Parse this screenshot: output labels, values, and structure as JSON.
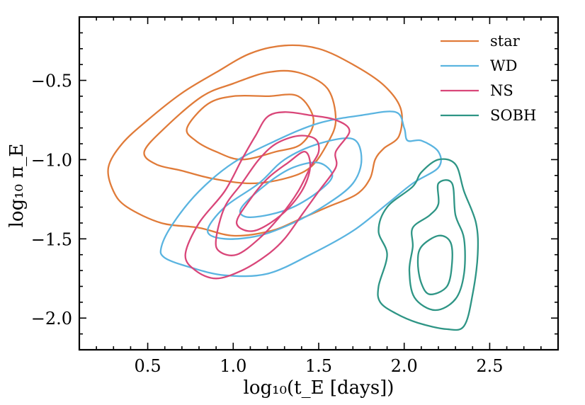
{
  "chart_data": {
    "type": "contour",
    "title": "",
    "xlabel": "log₁₀(t_E [days])",
    "ylabel": "log₁₀ π_E",
    "xlim": [
      0.1,
      2.9
    ],
    "ylim": [
      -2.2,
      -0.1
    ],
    "x_ticks": [
      {
        "v": 0.5,
        "label": "0.5"
      },
      {
        "v": 1.0,
        "label": "1.0"
      },
      {
        "v": 1.5,
        "label": "1.5"
      },
      {
        "v": 2.0,
        "label": "2.0"
      },
      {
        "v": 2.5,
        "label": "2.5"
      }
    ],
    "y_ticks": [
      {
        "v": -0.5,
        "label": "−0.5"
      },
      {
        "v": -1.0,
        "label": "−1.0"
      },
      {
        "v": -1.5,
        "label": "−1.5"
      },
      {
        "v": -2.0,
        "label": "−2.0"
      }
    ],
    "grid": false,
    "legend_position": "top-right",
    "series": [
      {
        "name": "star",
        "color": "#e07b39",
        "contours": [
          [
            [
              0.27,
              -1.05
            ],
            [
              0.35,
              -0.9
            ],
            [
              0.5,
              -0.75
            ],
            [
              0.7,
              -0.58
            ],
            [
              0.9,
              -0.45
            ],
            [
              1.1,
              -0.33
            ],
            [
              1.3,
              -0.28
            ],
            [
              1.5,
              -0.3
            ],
            [
              1.7,
              -0.4
            ],
            [
              1.88,
              -0.53
            ],
            [
              1.98,
              -0.68
            ],
            [
              1.97,
              -0.85
            ],
            [
              1.88,
              -0.93
            ],
            [
              1.83,
              -1.0
            ],
            [
              1.8,
              -1.12
            ],
            [
              1.72,
              -1.22
            ],
            [
              1.55,
              -1.3
            ],
            [
              1.38,
              -1.38
            ],
            [
              1.22,
              -1.45
            ],
            [
              1.0,
              -1.48
            ],
            [
              0.8,
              -1.43
            ],
            [
              0.58,
              -1.4
            ],
            [
              0.38,
              -1.3
            ],
            [
              0.3,
              -1.2
            ],
            [
              0.27,
              -1.05
            ]
          ],
          [
            [
              0.48,
              -0.95
            ],
            [
              0.6,
              -0.8
            ],
            [
              0.82,
              -0.6
            ],
            [
              1.0,
              -0.52
            ],
            [
              1.2,
              -0.45
            ],
            [
              1.38,
              -0.45
            ],
            [
              1.55,
              -0.55
            ],
            [
              1.6,
              -0.75
            ],
            [
              1.55,
              -0.9
            ],
            [
              1.45,
              -1.05
            ],
            [
              1.3,
              -1.12
            ],
            [
              1.1,
              -1.15
            ],
            [
              0.88,
              -1.12
            ],
            [
              0.7,
              -1.07
            ],
            [
              0.55,
              -1.03
            ],
            [
              0.48,
              -0.95
            ]
          ],
          [
            [
              0.73,
              -0.8
            ],
            [
              0.85,
              -0.65
            ],
            [
              1.0,
              -0.6
            ],
            [
              1.2,
              -0.6
            ],
            [
              1.38,
              -0.6
            ],
            [
              1.47,
              -0.75
            ],
            [
              1.4,
              -0.9
            ],
            [
              1.25,
              -0.95
            ],
            [
              1.05,
              -1.0
            ],
            [
              0.9,
              -0.95
            ],
            [
              0.78,
              -0.88
            ],
            [
              0.73,
              -0.8
            ]
          ]
        ]
      },
      {
        "name": "WD",
        "color": "#5ab4e0",
        "contours": [
          [
            [
              0.58,
              -1.55
            ],
            [
              0.65,
              -1.4
            ],
            [
              0.8,
              -1.2
            ],
            [
              1.0,
              -1.02
            ],
            [
              1.25,
              -0.88
            ],
            [
              1.5,
              -0.77
            ],
            [
              1.75,
              -0.72
            ],
            [
              1.95,
              -0.7
            ],
            [
              2.0,
              -0.8
            ],
            [
              2.02,
              -0.88
            ],
            [
              2.1,
              -0.88
            ],
            [
              2.2,
              -0.95
            ],
            [
              2.2,
              -1.05
            ],
            [
              2.05,
              -1.15
            ],
            [
              1.9,
              -1.28
            ],
            [
              1.7,
              -1.45
            ],
            [
              1.45,
              -1.6
            ],
            [
              1.2,
              -1.72
            ],
            [
              0.95,
              -1.73
            ],
            [
              0.75,
              -1.68
            ],
            [
              0.6,
              -1.62
            ],
            [
              0.58,
              -1.55
            ]
          ],
          [
            [
              0.85,
              -1.45
            ],
            [
              0.95,
              -1.3
            ],
            [
              1.15,
              -1.15
            ],
            [
              1.3,
              -1.0
            ],
            [
              1.5,
              -0.9
            ],
            [
              1.7,
              -0.87
            ],
            [
              1.75,
              -1.0
            ],
            [
              1.7,
              -1.15
            ],
            [
              1.55,
              -1.28
            ],
            [
              1.35,
              -1.4
            ],
            [
              1.15,
              -1.48
            ],
            [
              0.95,
              -1.5
            ],
            [
              0.85,
              -1.45
            ]
          ],
          [
            [
              1.05,
              -1.3
            ],
            [
              1.2,
              -1.15
            ],
            [
              1.35,
              -1.05
            ],
            [
              1.5,
              -1.02
            ],
            [
              1.58,
              -1.1
            ],
            [
              1.5,
              -1.2
            ],
            [
              1.35,
              -1.3
            ],
            [
              1.2,
              -1.35
            ],
            [
              1.07,
              -1.36
            ],
            [
              1.05,
              -1.3
            ]
          ]
        ]
      },
      {
        "name": "NS",
        "color": "#d94679",
        "contours": [
          [
            [
              0.72,
              -1.6
            ],
            [
              0.8,
              -1.4
            ],
            [
              0.95,
              -1.2
            ],
            [
              1.05,
              -1.0
            ],
            [
              1.13,
              -0.85
            ],
            [
              1.2,
              -0.73
            ],
            [
              1.3,
              -0.7
            ],
            [
              1.45,
              -0.72
            ],
            [
              1.6,
              -0.75
            ],
            [
              1.68,
              -0.82
            ],
            [
              1.6,
              -0.95
            ],
            [
              1.6,
              -1.05
            ],
            [
              1.5,
              -1.2
            ],
            [
              1.4,
              -1.35
            ],
            [
              1.3,
              -1.5
            ],
            [
              1.2,
              -1.6
            ],
            [
              1.05,
              -1.7
            ],
            [
              0.9,
              -1.75
            ],
            [
              0.78,
              -1.7
            ],
            [
              0.72,
              -1.6
            ]
          ],
          [
            [
              0.9,
              -1.5
            ],
            [
              0.95,
              -1.3
            ],
            [
              1.05,
              -1.15
            ],
            [
              1.15,
              -1.0
            ],
            [
              1.25,
              -0.9
            ],
            [
              1.38,
              -0.85
            ],
            [
              1.48,
              -0.87
            ],
            [
              1.5,
              -0.95
            ],
            [
              1.45,
              -1.05
            ],
            [
              1.38,
              -1.2
            ],
            [
              1.28,
              -1.35
            ],
            [
              1.15,
              -1.5
            ],
            [
              1.02,
              -1.6
            ],
            [
              0.92,
              -1.58
            ],
            [
              0.9,
              -1.5
            ]
          ],
          [
            [
              1.02,
              -1.4
            ],
            [
              1.1,
              -1.25
            ],
            [
              1.2,
              -1.12
            ],
            [
              1.32,
              -1.02
            ],
            [
              1.42,
              -0.95
            ],
            [
              1.45,
              -1.05
            ],
            [
              1.4,
              -1.2
            ],
            [
              1.28,
              -1.35
            ],
            [
              1.12,
              -1.45
            ],
            [
              1.02,
              -1.4
            ]
          ]
        ]
      },
      {
        "name": "SOBH",
        "color": "#2e9585",
        "contours": [
          [
            [
              1.85,
              -1.8
            ],
            [
              1.9,
              -1.6
            ],
            [
              1.85,
              -1.45
            ],
            [
              1.9,
              -1.3
            ],
            [
              2.05,
              -1.17
            ],
            [
              2.1,
              -1.08
            ],
            [
              2.2,
              -1.0
            ],
            [
              2.3,
              -1.03
            ],
            [
              2.35,
              -1.2
            ],
            [
              2.42,
              -1.4
            ],
            [
              2.43,
              -1.6
            ],
            [
              2.4,
              -1.85
            ],
            [
              2.35,
              -2.05
            ],
            [
              2.25,
              -2.07
            ],
            [
              2.08,
              -2.03
            ],
            [
              1.95,
              -1.97
            ],
            [
              1.86,
              -1.9
            ],
            [
              1.85,
              -1.8
            ]
          ],
          [
            [
              2.03,
              -1.7
            ],
            [
              2.05,
              -1.55
            ],
            [
              2.05,
              -1.43
            ],
            [
              2.15,
              -1.35
            ],
            [
              2.2,
              -1.28
            ],
            [
              2.2,
              -1.15
            ],
            [
              2.28,
              -1.15
            ],
            [
              2.3,
              -1.35
            ],
            [
              2.35,
              -1.5
            ],
            [
              2.35,
              -1.72
            ],
            [
              2.3,
              -1.88
            ],
            [
              2.18,
              -1.95
            ],
            [
              2.06,
              -1.87
            ],
            [
              2.03,
              -1.7
            ]
          ],
          [
            [
              2.08,
              -1.65
            ],
            [
              2.1,
              -1.55
            ],
            [
              2.2,
              -1.48
            ],
            [
              2.27,
              -1.52
            ],
            [
              2.28,
              -1.65
            ],
            [
              2.25,
              -1.8
            ],
            [
              2.15,
              -1.85
            ],
            [
              2.1,
              -1.78
            ],
            [
              2.08,
              -1.65
            ]
          ]
        ]
      }
    ]
  }
}
